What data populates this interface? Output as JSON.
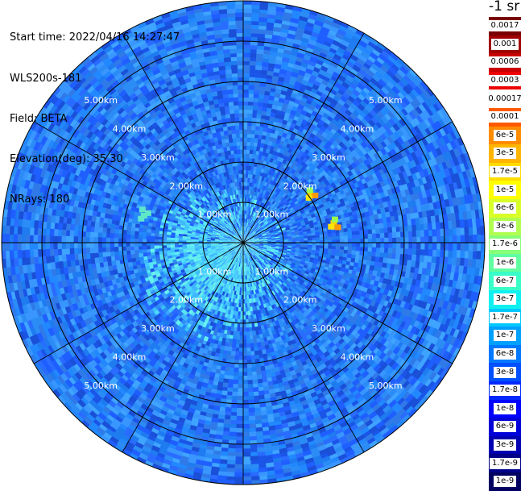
{
  "header": {
    "start_time": "Start time: 2022/04/16 14:27:47",
    "instrument": "WLS200s-181",
    "field": "Field: BETA",
    "elevation": "Elevation(deg): 35.30",
    "nrays": "NRays: 180"
  },
  "colorbar": {
    "unit": "-1 sr",
    "labels": [
      "0.0017",
      "0.001",
      "0.0006",
      "0.0003",
      "0.00017",
      "0.0001",
      "6e-5",
      "3e-5",
      "1.7e-5",
      "1e-5",
      "6e-6",
      "3e-6",
      "1.7e-6",
      "1e-6",
      "6e-7",
      "3e-7",
      "1.7e-7",
      "1e-7",
      "6e-8",
      "3e-8",
      "1.7e-8",
      "1e-8",
      "6e-9",
      "3e-9",
      "1.7e-9",
      "1e-9"
    ],
    "colors": [
      "#7a0000",
      "#a00000",
      "#c80000",
      "#ee0000",
      "#ffffff",
      "#ff5a00",
      "#ff8c00",
      "#ffb400",
      "#ffdc00",
      "#ffff00",
      "#d8ff28",
      "#b0ff50",
      "#88ff78",
      "#60ffa0",
      "#38ffc8",
      "#10f0f0",
      "#00c8ff",
      "#00a0ff",
      "#0078ff",
      "#0050ff",
      "#0028ff",
      "#0000ff",
      "#0000d8",
      "#0000b0",
      "#000088",
      "#000060"
    ]
  },
  "chart_data": {
    "type": "heatmap",
    "subtype": "polar-ppi",
    "field": "BETA",
    "elevation_deg": 35.3,
    "nrays": 180,
    "range_rings_km": [
      1.0,
      2.0,
      3.0,
      4.0,
      5.0
    ],
    "ring_labels": [
      "1.00km",
      "2.00km",
      "3.00km",
      "4.00km",
      "5.00km"
    ],
    "max_range_km": 6.0,
    "spokes_deg": [
      0,
      30,
      60,
      90,
      120,
      150,
      180,
      210,
      240,
      270,
      300,
      330
    ],
    "background_level": "1e-8 to 6e-8",
    "near_field_level": "1e-7 to 6e-7",
    "hotspots": [
      {
        "range_km": 2.05,
        "azimuth_deg": 54,
        "level": "1e-5 to 3e-5"
      },
      {
        "range_km": 2.3,
        "azimuth_deg": 78,
        "level": "1e-5"
      },
      {
        "range_km": 2.55,
        "azimuth_deg": 285,
        "level": "6e-7"
      }
    ]
  }
}
